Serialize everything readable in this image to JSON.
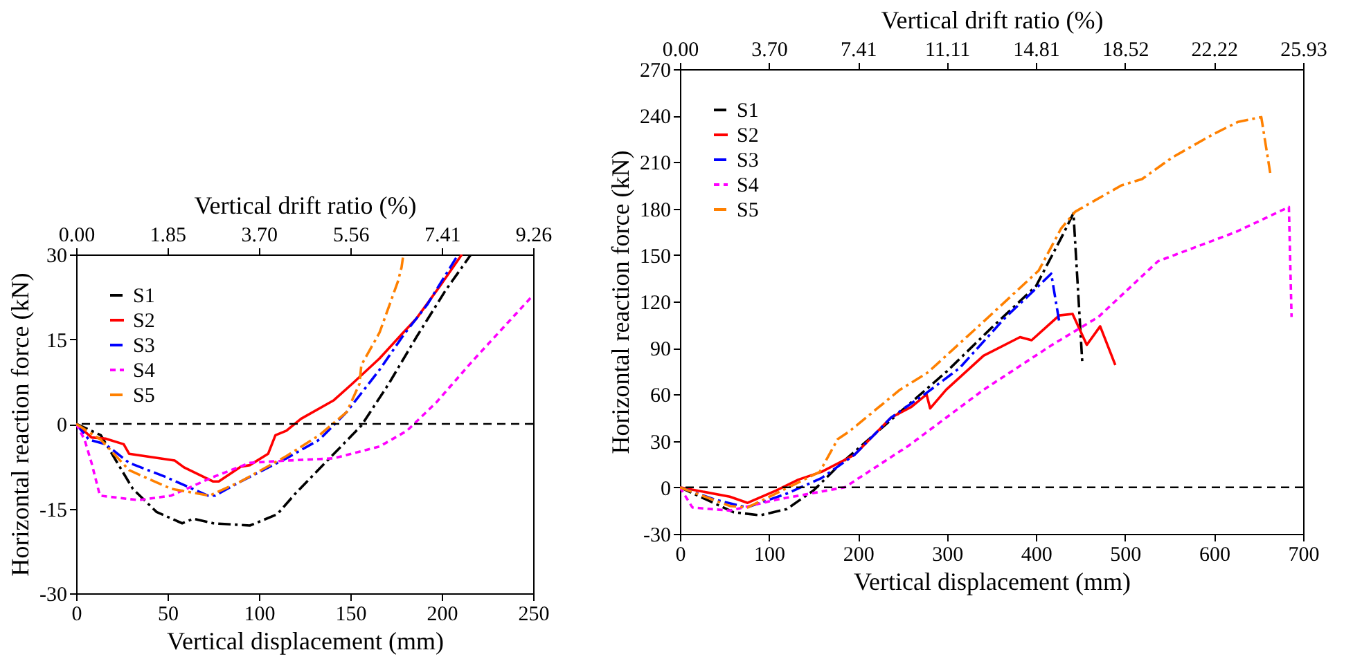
{
  "chart_data": [
    {
      "type": "line",
      "xlabel": "Vertical displacement (mm)",
      "ylabel": "Horizontal reaction force (kN)",
      "x2label": "Vertical drift ratio (%)",
      "xlim": [
        0,
        250
      ],
      "xticks": [
        0,
        50,
        100,
        150,
        200,
        250
      ],
      "ylim": [
        -30,
        30
      ],
      "yticks": [
        -30,
        -15,
        0,
        15,
        30
      ],
      "x2lim": [
        0,
        9.26
      ],
      "x2ticks": [
        {
          "value": 0,
          "label": "0.00"
        },
        {
          "value": 1.85,
          "label": "1.85"
        },
        {
          "value": 3.7,
          "label": "3.70"
        },
        {
          "value": 5.56,
          "label": "5.56"
        },
        {
          "value": 7.41,
          "label": "7.41"
        },
        {
          "value": 9.26,
          "label": "9.26"
        }
      ],
      "grid": false,
      "legend": "top left",
      "ref_lines": [
        {
          "axis": "y",
          "value": 0,
          "color": "#000000",
          "line_style": "dashed"
        }
      ],
      "series": [
        {
          "name": "S1",
          "color": "#000000",
          "line_style": "dashed",
          "x": [
            0,
            13.5,
            31,
            44,
            58,
            64,
            75,
            95,
            110,
            120,
            141,
            156,
            171,
            186,
            202,
            216
          ],
          "values": [
            0,
            -2,
            -11.5,
            -15.6,
            -17.6,
            -16.8,
            -17.6,
            -18,
            -16,
            -12.3,
            -5.3,
            -0.3,
            7.1,
            15.3,
            23.6,
            30
          ]
        },
        {
          "name": "S2",
          "color": "#ff0000",
          "line_style": "solid",
          "x": [
            0,
            8.4,
            16,
            26,
            29,
            54,
            59,
            75,
            78,
            90,
            95,
            105,
            109,
            115,
            123,
            141,
            151,
            166,
            179,
            186,
            199,
            211
          ],
          "values": [
            0,
            -2.4,
            -2.6,
            -3.6,
            -5.3,
            -6.5,
            -7.7,
            -10.2,
            -10.2,
            -7.6,
            -7.3,
            -5.3,
            -2,
            -1.2,
            0.9,
            4.2,
            7.1,
            11.6,
            16.2,
            18.6,
            24.4,
            30
          ]
        },
        {
          "name": "S3",
          "color": "#0000ff",
          "line_style": "dashed",
          "x": [
            0,
            7,
            16,
            29,
            49,
            72,
            76,
            90,
            115,
            133,
            148,
            166,
            179,
            192,
            209
          ],
          "values": [
            0,
            -2.8,
            -3.6,
            -6.9,
            -9.4,
            -12.7,
            -12.7,
            -10.2,
            -6.1,
            -2.8,
            2.1,
            9.6,
            15.7,
            21.1,
            30
          ]
        },
        {
          "name": "S4",
          "color": "#ff00ff",
          "line_style": "dotted",
          "x": [
            0,
            4.6,
            8.4,
            13,
            34,
            52,
            75,
            95,
            115,
            141,
            166,
            181,
            197,
            217,
            250
          ],
          "values": [
            0,
            -2.8,
            -6.9,
            -12.7,
            -13.5,
            -12.7,
            -9.4,
            -6.9,
            -6.5,
            -6.1,
            -4,
            -1.2,
            3.8,
            11.2,
            22.8
          ]
        },
        {
          "name": "S5",
          "color": "#ff8000",
          "line_style": "dashed",
          "x": [
            0,
            13.5,
            29,
            52,
            73,
            90,
            115,
            133,
            148,
            155,
            156,
            166,
            176,
            178,
            179
          ],
          "values": [
            0,
            -2.8,
            -8.2,
            -11.5,
            -12.7,
            -10.2,
            -5.7,
            -2,
            2.1,
            7.1,
            10.4,
            16.2,
            25.2,
            27.7,
            30
          ]
        }
      ]
    },
    {
      "type": "line",
      "xlabel": "Vertical displacement (mm)",
      "ylabel": "Horizontal reaction force (kN)",
      "x2label": "Vertical drift ratio (%)",
      "xlim": [
        0,
        700
      ],
      "xticks": [
        0,
        100,
        200,
        300,
        400,
        500,
        600,
        700
      ],
      "ylim": [
        -30,
        270
      ],
      "yticks": [
        -30,
        0,
        30,
        60,
        90,
        120,
        150,
        180,
        210,
        240,
        270
      ],
      "x2lim": [
        0,
        25.93
      ],
      "x2ticks": [
        {
          "value": 0,
          "label": "0.00"
        },
        {
          "value": 3.7,
          "label": "3.70"
        },
        {
          "value": 7.41,
          "label": "7.41"
        },
        {
          "value": 11.11,
          "label": "11.11"
        },
        {
          "value": 14.81,
          "label": "14.81"
        },
        {
          "value": 18.52,
          "label": "18.52"
        },
        {
          "value": 22.22,
          "label": "22.22"
        },
        {
          "value": 25.93,
          "label": "25.93"
        }
      ],
      "grid": false,
      "legend": "top left",
      "ref_lines": [
        {
          "axis": "y",
          "value": 0,
          "color": "#000000",
          "line_style": "dashed"
        }
      ],
      "series": [
        {
          "name": "S1",
          "color": "#000000",
          "line_style": "dashed",
          "x": [
            0,
            30,
            60,
            90,
            120,
            150,
            180,
            220,
            260,
            300,
            350,
            400,
            430,
            442,
            452
          ],
          "values": [
            0,
            -8,
            -16,
            -18,
            -14,
            -2,
            15,
            35,
            55,
            75,
            103,
            130,
            163,
            177,
            80
          ]
        },
        {
          "name": "S2",
          "color": "#ff0000",
          "line_style": "solid",
          "x": [
            0,
            56,
            76,
            108,
            133,
            159,
            196,
            237,
            260,
            277,
            281,
            299,
            341,
            382,
            395,
            426,
            441,
            457,
            472,
            489
          ],
          "values": [
            0,
            -6,
            -10,
            -2,
            5,
            10,
            21,
            45,
            52,
            60,
            51,
            63,
            85,
            97,
            95,
            111,
            112,
            92,
            104,
            79
          ]
        },
        {
          "name": "S3",
          "color": "#0000ff",
          "line_style": "dashed",
          "x": [
            0,
            40,
            75,
            120,
            159,
            196,
            237,
            277,
            314,
            366,
            392,
            417,
            426
          ],
          "values": [
            0,
            -8,
            -13,
            -4,
            6,
            21,
            45,
            61,
            77,
            110,
            124,
            138,
            107
          ]
        },
        {
          "name": "S4",
          "color": "#ff00ff",
          "line_style": "dotted",
          "x": [
            0,
            14,
            56,
            108,
            185,
            257,
            341,
            418,
            470,
            537,
            625,
            684,
            687
          ],
          "values": [
            0,
            -13,
            -15,
            -8,
            0,
            27,
            63,
            92,
            110,
            146,
            165,
            181,
            110
          ]
        },
        {
          "name": "S5",
          "color": "#ff8000",
          "line_style": "dashed",
          "x": [
            0,
            56,
            76,
            157,
            177,
            190,
            247,
            278,
            341,
            403,
            428,
            444,
            496,
            519,
            553,
            599,
            627,
            653,
            663
          ],
          "values": [
            0,
            -12,
            -13,
            10,
            31,
            36,
            63,
            74,
            107,
            140,
            167,
            178,
            195,
            199,
            213,
            228,
            236,
            239,
            203
          ]
        }
      ]
    }
  ]
}
